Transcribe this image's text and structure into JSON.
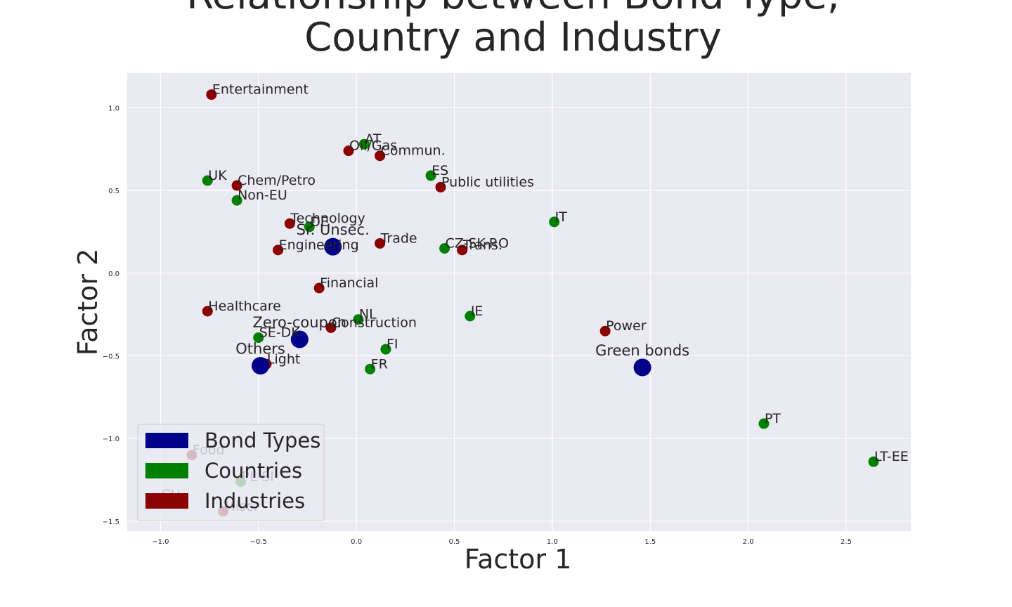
{
  "chart_data": {
    "type": "scatter",
    "title": "Relationship between Bond Type,\nCountry and Industry",
    "xlabel": "Factor 1",
    "ylabel": "Factor 2",
    "xlim": [
      -1.17,
      2.83
    ],
    "ylim": [
      -1.56,
      1.21
    ],
    "xticks": [
      -1.0,
      -0.5,
      0.0,
      0.5,
      1.0,
      1.5,
      2.0,
      2.5
    ],
    "xtick_labels": [
      "−1.0",
      "−0.5",
      "0.0",
      "0.5",
      "1.0",
      "1.5",
      "2.0",
      "2.5"
    ],
    "yticks": [
      1.0,
      0.5,
      0.0,
      -0.5,
      -1.0,
      -1.5
    ],
    "ytick_labels": [
      "1.0",
      "0.5",
      "0.0",
      "−0.5",
      "−1.0",
      "−1.5"
    ],
    "grid": true,
    "legend_position": "lower-left",
    "colors": {
      "plot_background": "#eaeaf2",
      "grid": "#ffffff",
      "bond_types": "#00008b",
      "countries": "#008000",
      "industries": "#8b0000"
    },
    "legend": [
      {
        "label": "Bond Types",
        "color": "#00008b"
      },
      {
        "label": "Countries",
        "color": "#008000"
      },
      {
        "label": "Industries",
        "color": "#8b0000"
      }
    ],
    "series": [
      {
        "name": "Industries",
        "color": "#8b0000",
        "points": [
          {
            "label": "Entertainment",
            "x": -0.74,
            "y": 1.08
          },
          {
            "label": "Oil/Gas",
            "x": -0.04,
            "y": 0.74
          },
          {
            "label": "Commun.",
            "x": 0.12,
            "y": 0.71
          },
          {
            "label": "Public utilities",
            "x": 0.43,
            "y": 0.52
          },
          {
            "label": "Chem/Petro",
            "x": -0.61,
            "y": 0.53
          },
          {
            "label": "Technology",
            "x": -0.34,
            "y": 0.3
          },
          {
            "label": "Engineering",
            "x": -0.4,
            "y": 0.14
          },
          {
            "label": "Trade",
            "x": 0.12,
            "y": 0.18
          },
          {
            "label": "Trans.",
            "x": 0.54,
            "y": 0.14
          },
          {
            "label": "Financial",
            "x": -0.19,
            "y": -0.09
          },
          {
            "label": "Healthcare",
            "x": -0.76,
            "y": -0.23
          },
          {
            "label": "Construction",
            "x": -0.13,
            "y": -0.33
          },
          {
            "label": "Power",
            "x": 1.27,
            "y": -0.35
          },
          {
            "label": "Light",
            "x": -0.46,
            "y": -0.55
          },
          {
            "label": "Food",
            "x": -0.84,
            "y": -1.1
          },
          {
            "label": "Misc.",
            "x": -0.68,
            "y": -1.44
          }
        ]
      },
      {
        "name": "Countries",
        "color": "#008000",
        "points": [
          {
            "label": "AT",
            "x": 0.04,
            "y": 0.78
          },
          {
            "label": "ES",
            "x": 0.38,
            "y": 0.59
          },
          {
            "label": "UK",
            "x": -0.76,
            "y": 0.56
          },
          {
            "label": "Non-EU",
            "x": -0.61,
            "y": 0.44
          },
          {
            "label": "DE",
            "x": -0.24,
            "y": 0.28
          },
          {
            "label": "IT",
            "x": 1.01,
            "y": 0.31
          },
          {
            "label": "CZ-SK-RO",
            "x": 0.45,
            "y": 0.15
          },
          {
            "label": "IE",
            "x": 0.58,
            "y": -0.26
          },
          {
            "label": "NL",
            "x": 0.01,
            "y": -0.28
          },
          {
            "label": "SE-DK",
            "x": -0.5,
            "y": -0.39
          },
          {
            "label": "FI",
            "x": 0.15,
            "y": -0.46
          },
          {
            "label": "FR",
            "x": 0.07,
            "y": -0.58
          },
          {
            "label": "PT",
            "x": 2.08,
            "y": -0.91
          },
          {
            "label": "LT-EE",
            "x": 2.64,
            "y": -1.14
          },
          {
            "label": "PL-SI",
            "x": -0.59,
            "y": -1.26
          },
          {
            "label": "CH",
            "x": -1.0,
            "y": -1.37
          }
        ]
      },
      {
        "name": "Bond Types",
        "color": "#00008b",
        "points": [
          {
            "label": "Sr. Unsec.",
            "x": -0.12,
            "y": 0.16
          },
          {
            "label": "Zero-coupon",
            "x": -0.29,
            "y": -0.4
          },
          {
            "label": "Others",
            "x": -0.49,
            "y": -0.56
          },
          {
            "label": "Green bonds",
            "x": 1.46,
            "y": -0.57
          }
        ]
      }
    ]
  }
}
